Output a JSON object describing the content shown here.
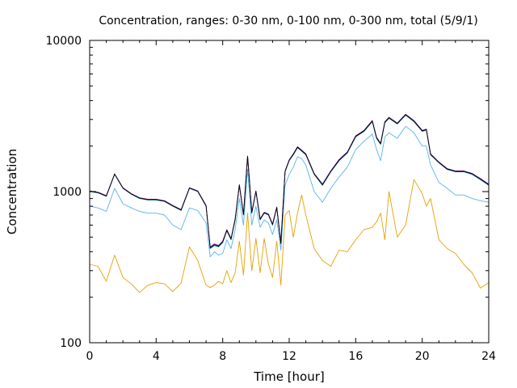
{
  "chart_data": {
    "type": "line",
    "title": "Concentration, ranges: 0-30 nm, 0-100 nm, 0-300 nm, total (5/9/1)",
    "xlabel": "Time [hour]",
    "ylabel": "Concentration",
    "xlim": [
      0,
      24
    ],
    "ylim": [
      100,
      10000
    ],
    "yscale": "log",
    "grid": false,
    "legend": "none",
    "x_ticks": [
      {
        "value": 0,
        "label": "0"
      },
      {
        "value": 4,
        "label": "4"
      },
      {
        "value": 8,
        "label": "8"
      },
      {
        "value": 12,
        "label": "12"
      },
      {
        "value": 16,
        "label": "16"
      },
      {
        "value": 20,
        "label": "20"
      },
      {
        "value": 24,
        "label": "24"
      }
    ],
    "y_ticks": [
      {
        "value": 100,
        "label": "100"
      },
      {
        "value": 1000,
        "label": "1000"
      },
      {
        "value": 10000,
        "label": "10000"
      }
    ],
    "x": [
      0,
      0.5,
      1,
      1.5,
      2,
      2.5,
      3,
      3.5,
      4,
      4.5,
      5,
      5.5,
      6,
      6.5,
      7,
      7.25,
      7.5,
      7.75,
      8,
      8.25,
      8.5,
      8.75,
      9,
      9.25,
      9.5,
      9.75,
      10,
      10.25,
      10.5,
      10.75,
      11,
      11.25,
      11.5,
      11.75,
      12,
      12.25,
      12.5,
      12.75,
      13,
      13.5,
      14,
      14.5,
      15,
      15.5,
      16,
      16.5,
      17,
      17.25,
      17.5,
      17.75,
      18,
      18.5,
      19,
      19.5,
      20,
      20.25,
      20.5,
      21,
      21.5,
      22,
      22.5,
      23,
      23.5,
      24
    ],
    "series": [
      {
        "color": "#e6a000",
        "values": [
          330,
          320,
          255,
          380,
          270,
          245,
          215,
          240,
          250,
          245,
          218,
          248,
          430,
          350,
          240,
          232,
          240,
          255,
          245,
          300,
          250,
          290,
          470,
          280,
          720,
          300,
          490,
          290,
          490,
          330,
          270,
          470,
          240,
          700,
          750,
          500,
          720,
          950,
          700,
          420,
          350,
          320,
          410,
          400,
          480,
          560,
          580,
          630,
          720,
          480,
          1000,
          500,
          600,
          1200,
          970,
          800,
          900,
          480,
          420,
          390,
          330,
          290,
          230,
          250
        ]
      },
      {
        "color": "#56b4e9",
        "values": [
          800,
          780,
          740,
          1050,
          830,
          780,
          740,
          720,
          720,
          700,
          600,
          560,
          780,
          750,
          620,
          370,
          400,
          380,
          390,
          480,
          420,
          560,
          900,
          600,
          1400,
          600,
          800,
          580,
          650,
          620,
          520,
          650,
          410,
          1100,
          1300,
          1450,
          1700,
          1650,
          1500,
          1000,
          850,
          1050,
          1250,
          1450,
          1900,
          2150,
          2400,
          1900,
          1600,
          2300,
          2450,
          2250,
          2700,
          2450,
          2000,
          2000,
          1500,
          1150,
          1050,
          950,
          950,
          900,
          870,
          850
        ]
      },
      {
        "color": "#009e73",
        "values": [
          1000,
          980,
          930,
          1300,
          1050,
          960,
          900,
          880,
          880,
          860,
          800,
          750,
          1050,
          1000,
          800,
          420,
          440,
          430,
          460,
          550,
          480,
          650,
          1100,
          700,
          1700,
          720,
          1000,
          650,
          720,
          700,
          600,
          780,
          450,
          1350,
          1600,
          1750,
          1950,
          1850,
          1750,
          1300,
          1100,
          1350,
          1600,
          1800,
          2300,
          2500,
          2900,
          2250,
          2050,
          2850,
          3050,
          2800,
          3200,
          2900,
          2500,
          2550,
          1750,
          1550,
          1400,
          1350,
          1350,
          1300,
          1200,
          1100
        ]
      },
      {
        "color": "#9400d3",
        "values": [
          1010,
          990,
          940,
          1310,
          1060,
          970,
          910,
          890,
          890,
          870,
          810,
          760,
          1060,
          1010,
          810,
          430,
          450,
          440,
          470,
          560,
          490,
          660,
          1110,
          710,
          1720,
          730,
          1010,
          660,
          730,
          710,
          610,
          790,
          460,
          1370,
          1620,
          1780,
          1980,
          1880,
          1780,
          1320,
          1120,
          1370,
          1630,
          1830,
          2340,
          2540,
          2950,
          2290,
          2090,
          2900,
          3100,
          2840,
          3250,
          2950,
          2540,
          2590,
          1780,
          1570,
          1420,
          1370,
          1370,
          1320,
          1220,
          1120
        ]
      },
      {
        "color": "#000000",
        "values": [
          1005,
          985,
          935,
          1305,
          1055,
          965,
          905,
          885,
          885,
          865,
          805,
          755,
          1055,
          1005,
          805,
          425,
          445,
          435,
          465,
          555,
          485,
          655,
          1105,
          705,
          1710,
          725,
          1005,
          655,
          725,
          705,
          605,
          785,
          455,
          1360,
          1610,
          1765,
          1965,
          1865,
          1765,
          1310,
          1110,
          1360,
          1615,
          1815,
          2320,
          2520,
          2925,
          2270,
          2070,
          2875,
          3075,
          2820,
          3225,
          2925,
          2520,
          2570,
          1765,
          1560,
          1410,
          1360,
          1360,
          1310,
          1210,
          1110
        ]
      }
    ]
  }
}
